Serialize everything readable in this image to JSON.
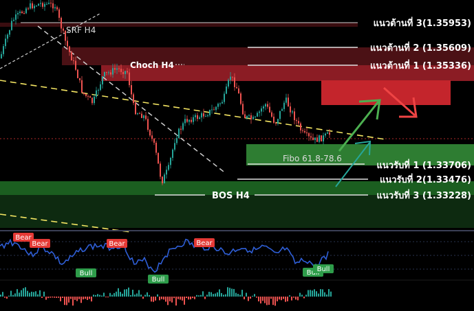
{
  "chart_data": [
    {
      "type": "candlestick",
      "timeframe": "H4",
      "levels": {
        "resistance": [
          {
            "label": "แนวต้านที่ 3(1.35953)",
            "value": 1.35953
          },
          {
            "label": "แนวต้านที่ 2 (1.35609)",
            "value": 1.35609
          },
          {
            "label": "แนวต้านที่ 1 (1.35336)",
            "value": 1.35336
          }
        ],
        "support": [
          {
            "label": "แนวรับที่ 1 (1.33706)",
            "value": 1.33706
          },
          {
            "label": "แนวรับที่ 2(1.33476)",
            "value": 1.33476
          },
          {
            "label": "แนวรับที่ 3 (1.33228)",
            "value": 1.33228
          }
        ]
      },
      "annotations": {
        "srf": "SRF H4",
        "choch": "Choch H4",
        "bos": "BOS H4",
        "fibo": "Fibo 61.8-78.6"
      },
      "zones": {
        "resistance_zone_color": "#8b1c24",
        "target_zone_color": "#c4252c",
        "fibo_zone_color": "#2e7d32",
        "bos_zone_color": "#1b5e20"
      },
      "colors": {
        "bull_candle": "#26a69a",
        "bear_candle": "#ef5350",
        "trend_dash": "#f5e663",
        "channel_dash": "#d0d0d0",
        "arrow_green": "#4caf50",
        "arrow_red": "#ef4444"
      }
    },
    {
      "type": "line",
      "name": "oscillator",
      "line_color": "#2f5fd8",
      "tags": [
        {
          "text": "Bear",
          "kind": "bear"
        },
        {
          "text": "Bear",
          "kind": "bear"
        },
        {
          "text": "Bear",
          "kind": "bear"
        },
        {
          "text": "Bear",
          "kind": "bear"
        },
        {
          "text": "Bull",
          "kind": "bull"
        },
        {
          "text": "Bull",
          "kind": "bull"
        },
        {
          "text": "Bull",
          "kind": "bull"
        },
        {
          "text": "Bull",
          "kind": "bull"
        }
      ]
    },
    {
      "type": "histogram",
      "name": "momentum",
      "pos_color": "#26a69a",
      "neg_color": "#ef5350"
    }
  ]
}
